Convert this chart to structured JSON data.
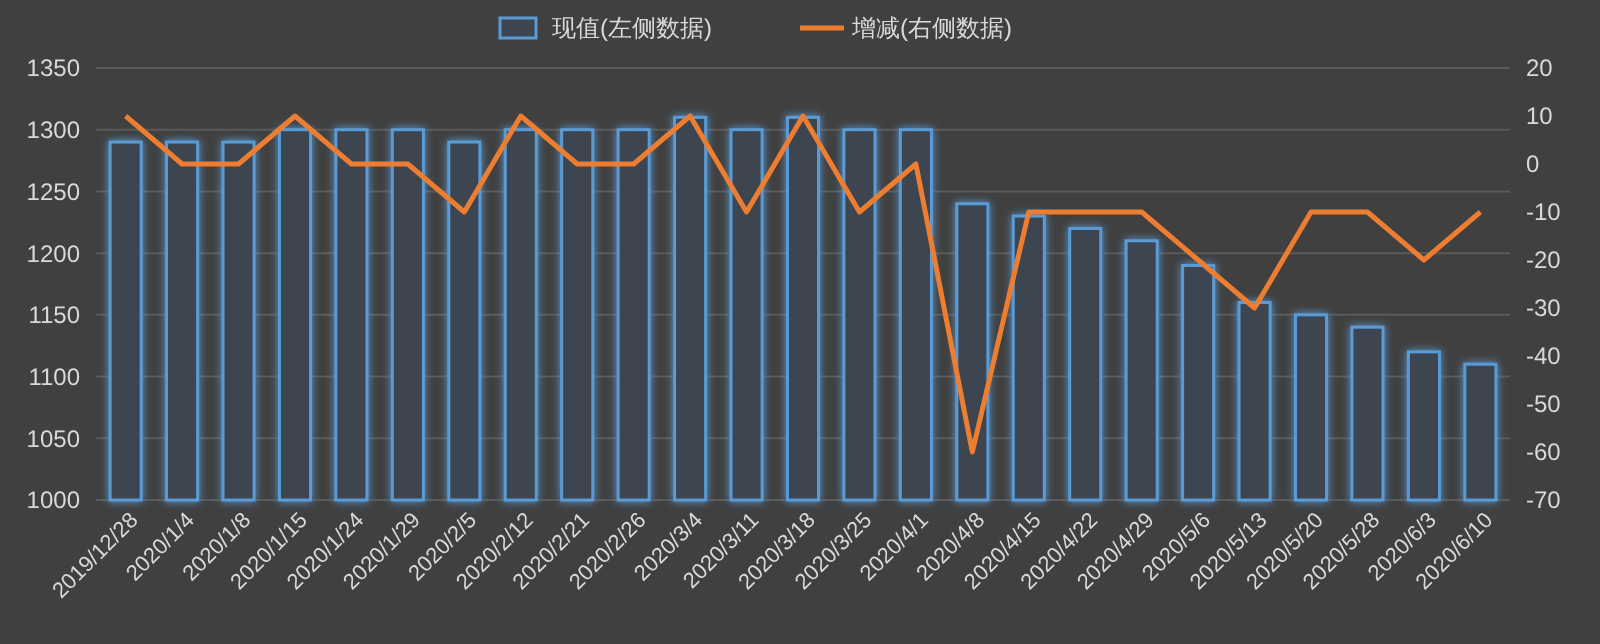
{
  "chart_data": {
    "type": "bar",
    "categories": [
      "2019/12/28",
      "2020/1/4",
      "2020/1/8",
      "2020/1/15",
      "2020/1/24",
      "2020/1/29",
      "2020/2/5",
      "2020/2/12",
      "2020/2/21",
      "2020/2/26",
      "2020/3/4",
      "2020/3/11",
      "2020/3/18",
      "2020/3/25",
      "2020/4/1",
      "2020/4/8",
      "2020/4/15",
      "2020/4/22",
      "2020/4/29",
      "2020/5/6",
      "2020/5/13",
      "2020/5/20",
      "2020/5/28",
      "2020/6/3",
      "2020/6/10"
    ],
    "series": [
      {
        "name": "现值(左侧数据)",
        "color": "#5b9bd5",
        "values": [
          1290,
          1290,
          1290,
          1300,
          1300,
          1300,
          1290,
          1300,
          1300,
          1300,
          1310,
          1300,
          1310,
          1300,
          1300,
          1240,
          1230,
          1220,
          1210,
          1190,
          1160,
          1150,
          1140,
          1120,
          1110
        ]
      },
      {
        "name": "增减(右侧数据)",
        "type": "line",
        "axis": "y2",
        "color": "#ed7d31",
        "values": [
          10,
          0,
          0,
          10,
          0,
          0,
          -10,
          10,
          0,
          0,
          10,
          -10,
          10,
          -10,
          0,
          -60,
          -10,
          -10,
          -10,
          -20,
          -30,
          -10,
          -10,
          -20,
          -10
        ]
      }
    ],
    "ylim": [
      1000,
      1350
    ],
    "yticks": [
      1000,
      1050,
      1100,
      1150,
      1200,
      1250,
      1300,
      1350
    ],
    "y2lim": [
      -70,
      20
    ],
    "y2ticks": [
      -70,
      -60,
      -50,
      -40,
      -30,
      -20,
      -10,
      0,
      10,
      20
    ],
    "grid": "y",
    "legend": "top",
    "marker": "none",
    "line_style": "solid"
  }
}
